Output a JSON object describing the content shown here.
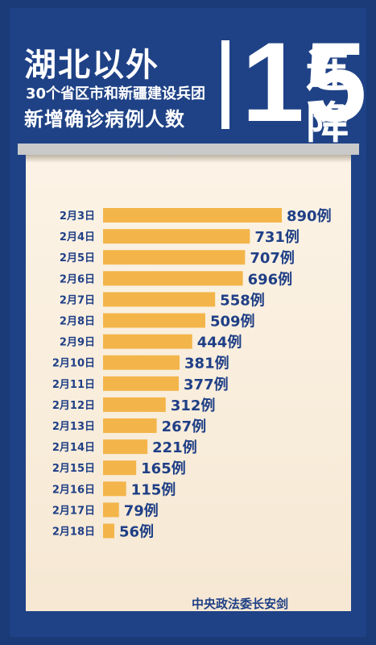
{
  "header": {
    "title": "湖北以外",
    "subtitle_line1": "30个省区市和新疆建设兵团",
    "subtitle_line2": "新增确诊病例人数",
    "big_number": "15",
    "big_char_1": "连",
    "big_char_2": "降"
  },
  "footer": {
    "source": "中央政法委长安剑"
  },
  "colors": {
    "background": "#1f4286",
    "board": "#fbf0e1",
    "bar": "#f3b54a",
    "label": "#1f3f86"
  },
  "chart_data": {
    "type": "bar",
    "orientation": "horizontal",
    "categories": [
      "2月3日",
      "2月4日",
      "2月5日",
      "2月6日",
      "2月7日",
      "2月8日",
      "2月9日",
      "2月10日",
      "2月11日",
      "2月12日",
      "2月13日",
      "2月14日",
      "2月15日",
      "2月16日",
      "2月17日",
      "2月18日"
    ],
    "values": [
      890,
      731,
      707,
      696,
      558,
      509,
      444,
      381,
      377,
      312,
      267,
      221,
      165,
      115,
      79,
      56
    ],
    "value_suffix": "例"
  }
}
